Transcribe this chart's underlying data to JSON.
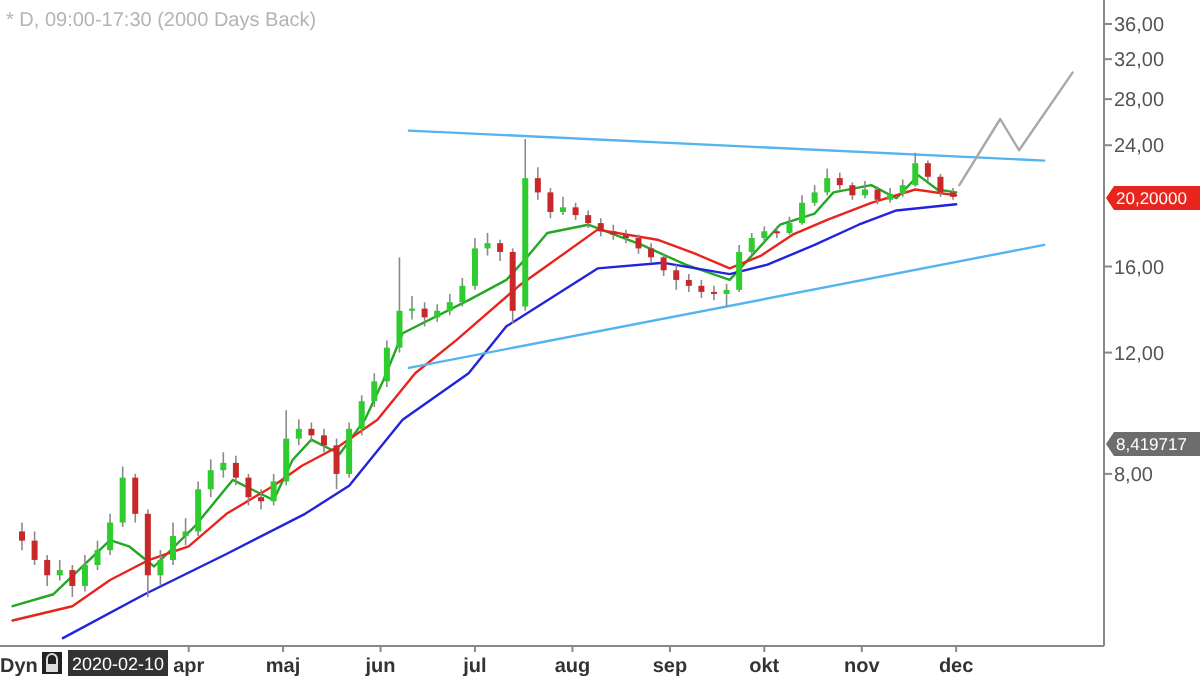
{
  "chart_data": {
    "type": "candlestick",
    "title": "* D, 09:00-17:30 (2000 Days Back)",
    "xlim": [
      "2020-02-01",
      "2021-01-17"
    ],
    "xticks": [
      {
        "value": "2020-04-01",
        "label": "apr"
      },
      {
        "value": "2020-05-01",
        "label": "maj"
      },
      {
        "value": "2020-06-01",
        "label": "jun"
      },
      {
        "value": "2020-07-01",
        "label": "jul"
      },
      {
        "value": "2020-08-01",
        "label": "aug"
      },
      {
        "value": "2020-09-01",
        "label": "sep"
      },
      {
        "value": "2020-10-01",
        "label": "okt"
      },
      {
        "value": "2020-11-01",
        "label": "nov"
      },
      {
        "value": "2020-12-01",
        "label": "dec"
      }
    ],
    "ylim": [
      4.5,
      39
    ],
    "log": true,
    "yticks": [
      {
        "value": 8,
        "label": "8,00"
      },
      {
        "value": 12,
        "label": "12,00"
      },
      {
        "value": 16,
        "label": "16,00"
      },
      {
        "value": 24,
        "label": "24,00"
      },
      {
        "value": 28,
        "label": "28,00"
      },
      {
        "value": 32,
        "label": "32,00"
      },
      {
        "value": 36,
        "label": "36,00"
      }
    ],
    "grid": false,
    "annotations": [
      "Dyn",
      "2020-02-10",
      "20,20000",
      "8,419717"
    ],
    "series": [
      {
        "type": "line",
        "color": "#22a822",
        "x": [
          "2020-02-05",
          "2020-02-18",
          "2020-03-07",
          "2020-03-13",
          "2020-03-21",
          "2020-04-03",
          "2020-04-15",
          "2020-04-24",
          "2020-04-28",
          "2020-05-04",
          "2020-05-10",
          "2020-05-19",
          "2020-05-27",
          "2020-06-02",
          "2020-06-08",
          "2020-06-29",
          "2020-07-11",
          "2020-07-17",
          "2020-07-24",
          "2020-08-06",
          "2020-08-23",
          "2020-09-06",
          "2020-09-20",
          "2020-09-26",
          "2020-10-06",
          "2020-10-17",
          "2020-10-23",
          "2020-11-04",
          "2020-11-12",
          "2020-11-19",
          "2020-11-25",
          "2020-12-01"
        ],
        "values": [
          5.14,
          5.35,
          6.41,
          6.28,
          5.87,
          6.72,
          7.84,
          7.48,
          7.33,
          8.38,
          8.97,
          8.55,
          9.59,
          10.97,
          12.8,
          14.3,
          15.3,
          16.4,
          17.9,
          18.4,
          17.2,
          16.1,
          15.3,
          16.4,
          18.4,
          19.1,
          20.5,
          21.0,
          20.1,
          21.7,
          20.7,
          20.5
        ]
      },
      {
        "type": "line",
        "color": "#e8241c",
        "x": [
          "2020-02-05",
          "2020-02-24",
          "2020-03-07",
          "2020-03-19",
          "2020-04-01",
          "2020-04-13",
          "2020-04-28",
          "2020-05-07",
          "2020-05-19",
          "2020-05-31",
          "2020-06-12",
          "2020-06-25",
          "2020-07-15",
          "2020-08-09",
          "2020-08-28",
          "2020-09-09",
          "2020-09-20",
          "2020-09-30",
          "2020-10-10",
          "2020-10-21",
          "2020-11-04",
          "2020-11-18",
          "2020-12-01"
        ],
        "values": [
          4.9,
          5.14,
          5.61,
          5.99,
          6.28,
          7.0,
          7.69,
          8.22,
          8.79,
          9.59,
          11.2,
          12.5,
          15.0,
          18.1,
          17.5,
          16.7,
          15.9,
          16.6,
          17.8,
          18.7,
          19.8,
          20.7,
          20.3
        ]
      },
      {
        "type": "line",
        "color": "#2323dd",
        "x": [
          "2020-02-21",
          "2020-03-18",
          "2020-04-13",
          "2020-05-08",
          "2020-05-22",
          "2020-06-08",
          "2020-06-29",
          "2020-07-11",
          "2020-08-09",
          "2020-08-30",
          "2020-09-20",
          "2020-10-02",
          "2020-10-17",
          "2020-10-31",
          "2020-11-12",
          "2020-12-01"
        ],
        "values": [
          4.62,
          5.35,
          6.12,
          7.0,
          7.69,
          9.59,
          11.2,
          13.1,
          15.9,
          16.2,
          15.6,
          16.1,
          17.2,
          18.4,
          19.3,
          19.7
        ]
      },
      {
        "type": "line",
        "color": "#55b4ef",
        "x": [
          "2020-06-10",
          "2020-12-29"
        ],
        "values": [
          25.2,
          22.8
        ]
      },
      {
        "type": "line",
        "color": "#55b4ef",
        "x": [
          "2020-06-10",
          "2020-12-29"
        ],
        "values": [
          11.4,
          17.2
        ]
      },
      {
        "type": "line",
        "color": "#a8a8a8",
        "x": [
          "2020-12-02",
          "2020-12-15",
          "2020-12-21",
          "2021-01-07"
        ],
        "values": [
          21.0,
          26.2,
          23.6,
          30.6
        ]
      },
      {
        "x": [
          "2020-02-08",
          "2020-02-12",
          "2020-02-16",
          "2020-02-20",
          "2020-02-24",
          "2020-02-28",
          "2020-03-03",
          "2020-03-07",
          "2020-03-11",
          "2020-03-15",
          "2020-03-19",
          "2020-03-23",
          "2020-03-27",
          "2020-03-31",
          "2020-04-04",
          "2020-04-08",
          "2020-04-12",
          "2020-04-16",
          "2020-04-20",
          "2020-04-24",
          "2020-04-28",
          "2020-05-02",
          "2020-05-06",
          "2020-05-10",
          "2020-05-14",
          "2020-05-18",
          "2020-05-22",
          "2020-05-26",
          "2020-05-30",
          "2020-06-03",
          "2020-06-07",
          "2020-06-11",
          "2020-06-15",
          "2020-06-19",
          "2020-06-23",
          "2020-06-27",
          "2020-07-01",
          "2020-07-05",
          "2020-07-09",
          "2020-07-13",
          "2020-07-17",
          "2020-07-21",
          "2020-07-25",
          "2020-07-29",
          "2020-08-02",
          "2020-08-06",
          "2020-08-10",
          "2020-08-14",
          "2020-08-18",
          "2020-08-22",
          "2020-08-26",
          "2020-08-30",
          "2020-09-03",
          "2020-09-07",
          "2020-09-11",
          "2020-09-15",
          "2020-09-19",
          "2020-09-23",
          "2020-09-27",
          "2020-10-01",
          "2020-10-05",
          "2020-10-09",
          "2020-10-13",
          "2020-10-17",
          "2020-10-21",
          "2020-10-25",
          "2020-10-29",
          "2020-11-02",
          "2020-11-06",
          "2020-11-10",
          "2020-11-14",
          "2020-11-18",
          "2020-11-22",
          "2020-11-26",
          "2020-11-30"
        ],
        "ohlc": [
          [
            6.6,
            6.8,
            6.2,
            6.4
          ],
          [
            6.4,
            6.6,
            5.9,
            6.0
          ],
          [
            6.0,
            6.1,
            5.5,
            5.7
          ],
          [
            5.7,
            6.0,
            5.6,
            5.8
          ],
          [
            5.8,
            5.9,
            5.3,
            5.5
          ],
          [
            5.5,
            6.1,
            5.4,
            5.9
          ],
          [
            5.9,
            6.4,
            5.8,
            6.2
          ],
          [
            6.2,
            7.0,
            6.1,
            6.8
          ],
          [
            6.8,
            8.2,
            6.7,
            7.9
          ],
          [
            7.9,
            8.0,
            6.8,
            7.0
          ],
          [
            7.0,
            7.1,
            5.3,
            5.7
          ],
          [
            5.7,
            6.2,
            5.5,
            6.0
          ],
          [
            6.0,
            6.8,
            5.9,
            6.5
          ],
          [
            6.5,
            6.9,
            6.3,
            6.6
          ],
          [
            6.6,
            7.8,
            6.5,
            7.6
          ],
          [
            7.6,
            8.4,
            7.4,
            8.1
          ],
          [
            8.1,
            8.6,
            7.9,
            8.3
          ],
          [
            8.3,
            8.5,
            7.7,
            7.9
          ],
          [
            7.9,
            8.0,
            7.2,
            7.4
          ],
          [
            7.4,
            7.6,
            7.1,
            7.3
          ],
          [
            7.3,
            8.0,
            7.2,
            7.8
          ],
          [
            7.8,
            9.9,
            7.7,
            9.0
          ],
          [
            9.0,
            9.6,
            8.8,
            9.3
          ],
          [
            9.3,
            9.5,
            8.9,
            9.1
          ],
          [
            9.1,
            9.3,
            8.6,
            8.8
          ],
          [
            8.8,
            9.0,
            7.6,
            8.0
          ],
          [
            8.0,
            9.5,
            7.9,
            9.3
          ],
          [
            9.3,
            10.4,
            9.1,
            10.2
          ],
          [
            10.2,
            11.2,
            10.0,
            10.9
          ],
          [
            10.9,
            12.5,
            10.7,
            12.2
          ],
          [
            12.2,
            16.5,
            12.0,
            13.8
          ],
          [
            13.8,
            14.5,
            13.4,
            13.9
          ],
          [
            13.9,
            14.2,
            13.1,
            13.5
          ],
          [
            13.5,
            14.1,
            13.3,
            13.8
          ],
          [
            13.8,
            14.6,
            13.6,
            14.2
          ],
          [
            14.2,
            15.4,
            14.0,
            15.0
          ],
          [
            15.0,
            17.6,
            14.8,
            17.0
          ],
          [
            17.0,
            17.9,
            16.6,
            17.3
          ],
          [
            17.3,
            17.5,
            16.3,
            16.8
          ],
          [
            16.8,
            17.0,
            13.2,
            13.8
          ],
          [
            14.0,
            24.5,
            13.8,
            21.5
          ],
          [
            21.5,
            22.3,
            20.0,
            20.5
          ],
          [
            20.5,
            20.8,
            18.8,
            19.2
          ],
          [
            19.2,
            20.2,
            19.0,
            19.5
          ],
          [
            19.5,
            19.8,
            18.7,
            19.0
          ],
          [
            19.0,
            19.3,
            18.2,
            18.5
          ],
          [
            18.5,
            18.8,
            17.7,
            18.0
          ],
          [
            18.0,
            18.4,
            17.5,
            17.8
          ],
          [
            17.8,
            18.1,
            17.3,
            17.6
          ],
          [
            17.6,
            17.8,
            16.7,
            17.0
          ],
          [
            17.0,
            17.3,
            16.2,
            16.5
          ],
          [
            16.5,
            16.7,
            15.5,
            15.8
          ],
          [
            15.8,
            16.1,
            14.8,
            15.3
          ],
          [
            15.3,
            15.6,
            14.7,
            15.0
          ],
          [
            15.0,
            15.3,
            14.4,
            14.7
          ],
          [
            14.7,
            15.0,
            14.3,
            14.6
          ],
          [
            14.6,
            15.1,
            14.0,
            14.8
          ],
          [
            14.8,
            17.2,
            14.7,
            16.8
          ],
          [
            16.8,
            17.9,
            16.6,
            17.6
          ],
          [
            17.6,
            18.3,
            17.4,
            18.0
          ],
          [
            18.0,
            18.3,
            17.6,
            17.9
          ],
          [
            17.9,
            18.9,
            17.8,
            18.5
          ],
          [
            18.5,
            20.3,
            18.4,
            19.8
          ],
          [
            19.8,
            21.0,
            19.6,
            20.5
          ],
          [
            20.5,
            22.2,
            20.3,
            21.5
          ],
          [
            21.5,
            21.9,
            20.7,
            21.0
          ],
          [
            21.0,
            21.2,
            20.0,
            20.3
          ],
          [
            20.3,
            21.3,
            20.1,
            20.7
          ],
          [
            20.7,
            20.9,
            19.7,
            20.0
          ],
          [
            20.0,
            20.8,
            19.8,
            20.4
          ],
          [
            20.4,
            21.4,
            20.2,
            21.0
          ],
          [
            21.0,
            23.4,
            20.9,
            22.6
          ],
          [
            22.6,
            22.8,
            21.3,
            21.6
          ],
          [
            21.6,
            21.8,
            20.2,
            20.5
          ],
          [
            20.5,
            20.8,
            20.0,
            20.2
          ]
        ],
        "colors": [
          "#c8282a",
          "#c8282a",
          "#c8282a",
          "#2ecc2e",
          "#c8282a",
          "#2ecc2e",
          "#2ecc2e",
          "#2ecc2e",
          "#2ecc2e",
          "#c8282a",
          "#c8282a",
          "#2ecc2e",
          "#2ecc2e",
          "#2ecc2e",
          "#2ecc2e",
          "#2ecc2e",
          "#2ecc2e",
          "#c8282a",
          "#c8282a",
          "#c8282a",
          "#2ecc2e",
          "#2ecc2e",
          "#2ecc2e",
          "#c8282a",
          "#c8282a",
          "#c8282a",
          "#2ecc2e",
          "#2ecc2e",
          "#2ecc2e",
          "#2ecc2e",
          "#2ecc2e",
          "#2ecc2e",
          "#c8282a",
          "#2ecc2e",
          "#2ecc2e",
          "#2ecc2e",
          "#2ecc2e",
          "#2ecc2e",
          "#c8282a",
          "#c8282a",
          "#2ecc2e",
          "#c8282a",
          "#c8282a",
          "#2ecc2e",
          "#c8282a",
          "#c8282a",
          "#c8282a",
          "#c8282a",
          "#c8282a",
          "#c8282a",
          "#c8282a",
          "#c8282a",
          "#c8282a",
          "#c8282a",
          "#c8282a",
          "#c8282a",
          "#2ecc2e",
          "#2ecc2e",
          "#2ecc2e",
          "#2ecc2e",
          "#c8282a",
          "#2ecc2e",
          "#2ecc2e",
          "#2ecc2e",
          "#2ecc2e",
          "#c8282a",
          "#c8282a",
          "#2ecc2e",
          "#c8282a",
          "#2ecc2e",
          "#2ecc2e",
          "#2ecc2e",
          "#c8282a",
          "#c8282a",
          "#c8282a"
        ]
      }
    ]
  }
}
